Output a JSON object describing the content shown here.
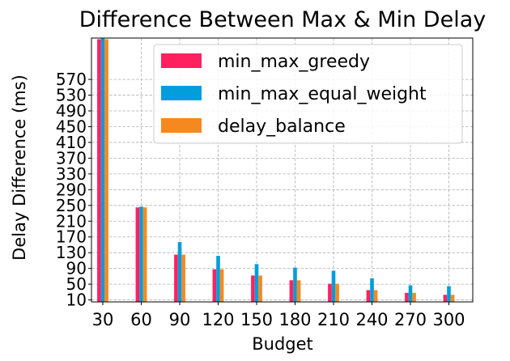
{
  "chart_data": {
    "type": "bar",
    "title": "Difference Between Max & Min Delay",
    "xlabel": "Budget",
    "ylabel": "Delay Difference (ms)",
    "categories": [
      "30",
      "60",
      "90",
      "120",
      "150",
      "180",
      "210",
      "240",
      "270",
      "300"
    ],
    "yticks": [
      10,
      50,
      90,
      130,
      170,
      210,
      250,
      290,
      330,
      370,
      410,
      450,
      490,
      530,
      570
    ],
    "ylim": [
      5,
      675
    ],
    "grid": true,
    "legend_position": "top-right",
    "series": [
      {
        "name": "min_max_greedy",
        "color": "#ff2060",
        "values": [
          672,
          245,
          125,
          88,
          72,
          60,
          51,
          35,
          28,
          23
        ]
      },
      {
        "name": "min_max_equal_weight",
        "color": "#039ddb",
        "values": [
          675,
          247,
          157,
          122,
          101,
          92,
          84,
          65,
          47,
          45
        ]
      },
      {
        "name": "delay_balance",
        "color": "#f5891f",
        "values": [
          672,
          245,
          125,
          88,
          72,
          60,
          51,
          35,
          28,
          23
        ]
      }
    ]
  }
}
